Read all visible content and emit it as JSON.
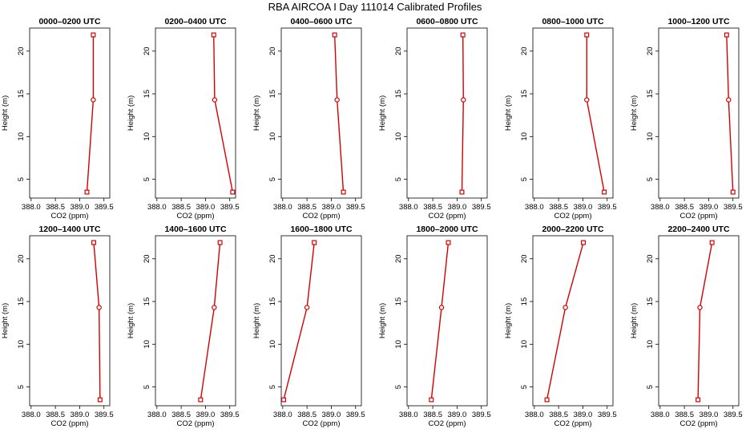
{
  "figure": {
    "title": "RBA AIRCOA I  Day 111014  Calibrated Profiles",
    "series_color": "#d40000"
  },
  "chart_data": [
    {
      "type": "line",
      "title": "0000–0200 UTC",
      "xlabel": "CO2 (ppm)",
      "ylabel": "Height (m)",
      "x": [
        389.15,
        389.28,
        389.28
      ],
      "y": [
        3.5,
        14.3,
        21.9
      ],
      "xlim": [
        387.97,
        389.62
      ],
      "ylim": [
        2.8,
        22.7
      ],
      "xticks": [
        "388.0",
        "388.5",
        "389.0",
        "389.5"
      ],
      "yticks": [
        "5",
        "10",
        "15",
        "20"
      ]
    },
    {
      "type": "line",
      "title": "0200–0400 UTC",
      "xlabel": "CO2 (ppm)",
      "ylabel": "Height (m)",
      "x": [
        389.56,
        389.19,
        389.17
      ],
      "y": [
        3.5,
        14.3,
        21.9
      ],
      "xlim": [
        387.97,
        389.62
      ],
      "ylim": [
        2.8,
        22.7
      ],
      "xticks": [
        "388.0",
        "388.5",
        "389.0",
        "389.5"
      ],
      "yticks": [
        "5",
        "10",
        "15",
        "20"
      ]
    },
    {
      "type": "line",
      "title": "0400–0600 UTC",
      "xlabel": "CO2 (ppm)",
      "ylabel": "Height (m)",
      "x": [
        389.25,
        389.12,
        389.07
      ],
      "y": [
        3.5,
        14.3,
        21.9
      ],
      "xlim": [
        387.97,
        389.62
      ],
      "ylim": [
        2.8,
        22.7
      ],
      "xticks": [
        "388.0",
        "388.5",
        "389.0",
        "389.5"
      ],
      "yticks": [
        "5",
        "10",
        "15",
        "20"
      ]
    },
    {
      "type": "line",
      "title": "0600–0800 UTC",
      "xlabel": "CO2 (ppm)",
      "ylabel": "Height (m)",
      "x": [
        389.1,
        389.13,
        389.12
      ],
      "y": [
        3.5,
        14.3,
        21.9
      ],
      "xlim": [
        387.97,
        389.62
      ],
      "ylim": [
        2.8,
        22.7
      ],
      "xticks": [
        "388.0",
        "388.5",
        "389.0",
        "389.5"
      ],
      "yticks": [
        "5",
        "10",
        "15",
        "20"
      ]
    },
    {
      "type": "line",
      "title": "0800–1000 UTC",
      "xlabel": "CO2 (ppm)",
      "ylabel": "Height (m)",
      "x": [
        389.44,
        389.08,
        389.08
      ],
      "y": [
        3.5,
        14.3,
        21.9
      ],
      "xlim": [
        387.97,
        389.62
      ],
      "ylim": [
        2.8,
        22.7
      ],
      "xticks": [
        "388.0",
        "388.5",
        "389.0",
        "389.5"
      ],
      "yticks": [
        "5",
        "10",
        "15",
        "20"
      ]
    },
    {
      "type": "line",
      "title": "1000–1200 UTC",
      "xlabel": "CO2 (ppm)",
      "ylabel": "Height (m)",
      "x": [
        389.5,
        389.41,
        389.37
      ],
      "y": [
        3.5,
        14.3,
        21.9
      ],
      "xlim": [
        387.97,
        389.62
      ],
      "ylim": [
        2.8,
        22.7
      ],
      "xticks": [
        "388.0",
        "388.5",
        "389.0",
        "389.5"
      ],
      "yticks": [
        "5",
        "10",
        "15",
        "20"
      ]
    },
    {
      "type": "line",
      "title": "1200–1400 UTC",
      "xlabel": "CO2 (ppm)",
      "ylabel": "Height (m)",
      "x": [
        389.42,
        389.4,
        389.29
      ],
      "y": [
        3.5,
        14.3,
        21.9
      ],
      "xlim": [
        387.97,
        389.62
      ],
      "ylim": [
        2.8,
        22.7
      ],
      "xticks": [
        "388.0",
        "388.5",
        "389.0",
        "389.5"
      ],
      "yticks": [
        "5",
        "10",
        "15",
        "20"
      ]
    },
    {
      "type": "line",
      "title": "1400–1600 UTC",
      "xlabel": "CO2 (ppm)",
      "ylabel": "Height (m)",
      "x": [
        388.9,
        389.18,
        389.3
      ],
      "y": [
        3.5,
        14.3,
        21.9
      ],
      "xlim": [
        387.97,
        389.62
      ],
      "ylim": [
        2.8,
        22.7
      ],
      "xticks": [
        "388.0",
        "388.5",
        "389.0",
        "389.5"
      ],
      "yticks": [
        "5",
        "10",
        "15",
        "20"
      ]
    },
    {
      "type": "line",
      "title": "1600–1800 UTC",
      "xlabel": "CO2 (ppm)",
      "ylabel": "Height (m)",
      "x": [
        388.02,
        388.5,
        388.65
      ],
      "y": [
        3.5,
        14.3,
        21.9
      ],
      "xlim": [
        387.97,
        389.62
      ],
      "ylim": [
        2.8,
        22.7
      ],
      "xticks": [
        "388.0",
        "388.5",
        "389.0",
        "389.5"
      ],
      "yticks": [
        "5",
        "10",
        "15",
        "20"
      ]
    },
    {
      "type": "line",
      "title": "1800–2000 UTC",
      "xlabel": "CO2 (ppm)",
      "ylabel": "Height (m)",
      "x": [
        388.47,
        388.68,
        388.82
      ],
      "y": [
        3.5,
        14.3,
        21.9
      ],
      "xlim": [
        387.97,
        389.62
      ],
      "ylim": [
        2.8,
        22.7
      ],
      "xticks": [
        "388.0",
        "388.5",
        "389.0",
        "389.5"
      ],
      "yticks": [
        "5",
        "10",
        "15",
        "20"
      ]
    },
    {
      "type": "line",
      "title": "2000–2200 UTC",
      "xlabel": "CO2 (ppm)",
      "ylabel": "Height (m)",
      "x": [
        388.26,
        388.64,
        389.01
      ],
      "y": [
        3.5,
        14.3,
        21.9
      ],
      "xlim": [
        387.97,
        389.62
      ],
      "ylim": [
        2.8,
        22.7
      ],
      "xticks": [
        "388.0",
        "388.5",
        "389.0",
        "389.5"
      ],
      "yticks": [
        "5",
        "10",
        "15",
        "20"
      ]
    },
    {
      "type": "line",
      "title": "2200–2400 UTC",
      "xlabel": "CO2 (ppm)",
      "ylabel": "Height (m)",
      "x": [
        388.78,
        388.82,
        389.07
      ],
      "y": [
        3.5,
        14.3,
        21.9
      ],
      "xlim": [
        387.97,
        389.62
      ],
      "ylim": [
        2.8,
        22.7
      ],
      "xticks": [
        "388.0",
        "388.5",
        "389.0",
        "389.5"
      ],
      "yticks": [
        "5",
        "10",
        "15",
        "20"
      ]
    }
  ]
}
